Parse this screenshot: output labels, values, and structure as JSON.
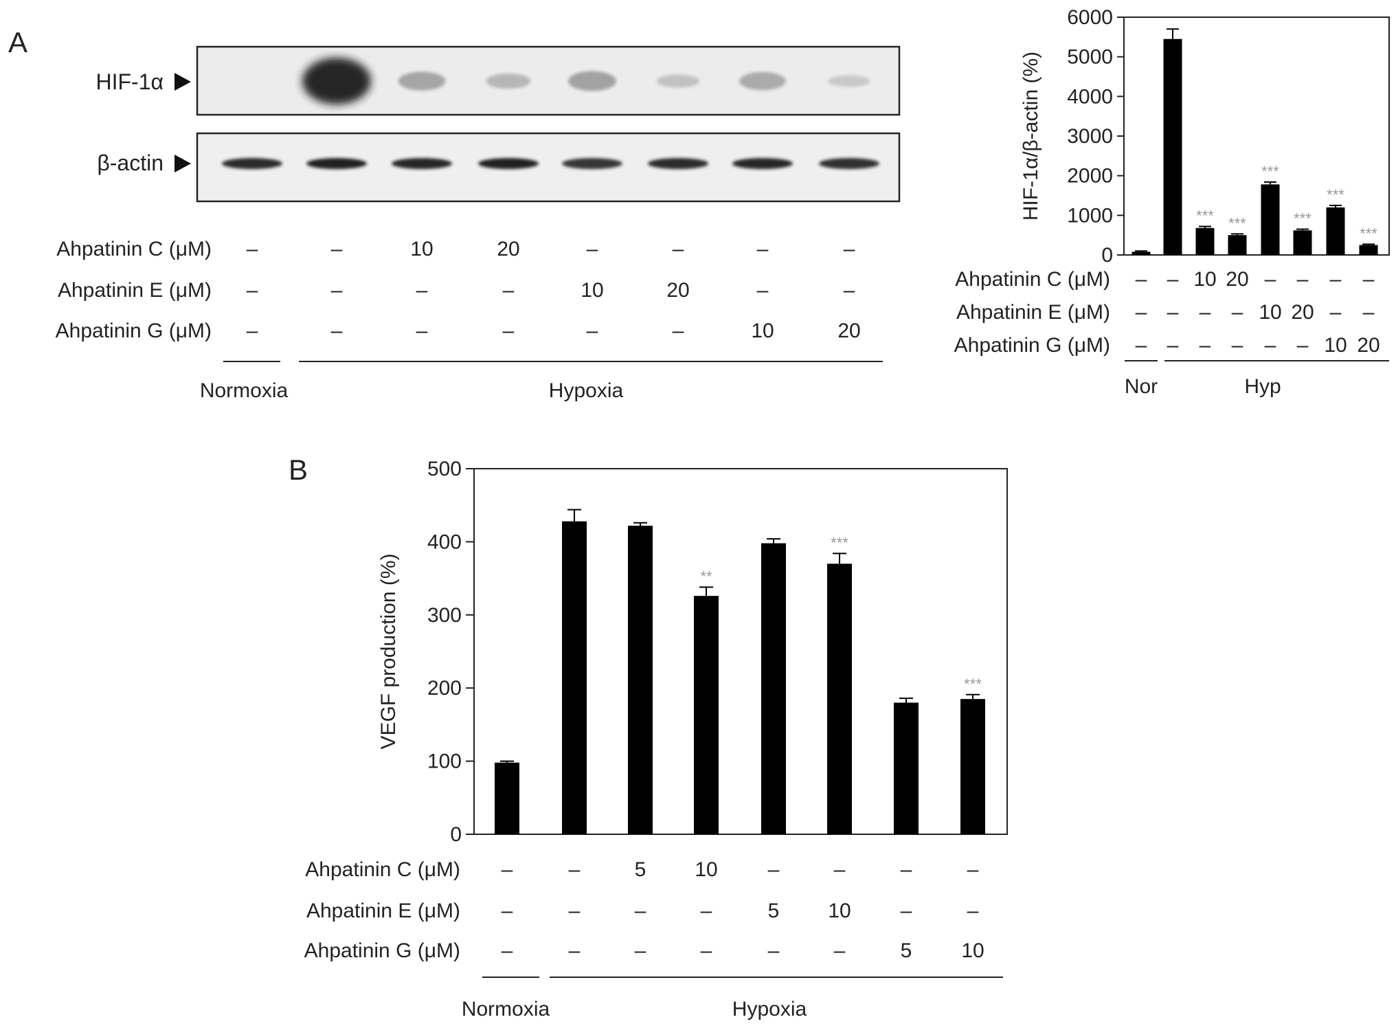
{
  "panel_labels": {
    "a": "A",
    "b": "B"
  },
  "blot": {
    "hif_label": "HIF-1α",
    "actin_label": "β-actin",
    "hif_intensities": [
      0,
      1.0,
      0.22,
      0.12,
      0.25,
      0.06,
      0.2,
      0.02
    ],
    "actin_intensities": [
      0.9,
      0.95,
      0.92,
      0.95,
      0.85,
      0.9,
      0.92,
      0.88
    ]
  },
  "blot_treatments": {
    "c_label": "Ahpatinin C (μM)",
    "e_label": "Ahpatinin E (μM)",
    "g_label": "Ahpatinin G (μM)",
    "c": [
      "–",
      "–",
      "10",
      "20",
      "–",
      "–",
      "–",
      "–"
    ],
    "e": [
      "–",
      "–",
      "–",
      "–",
      "10",
      "20",
      "–",
      "–"
    ],
    "g": [
      "–",
      "–",
      "–",
      "–",
      "–",
      "–",
      "10",
      "20"
    ],
    "normoxia": "Normoxia",
    "hypoxia": "Hypoxia"
  },
  "chart_data": [
    {
      "id": "A",
      "type": "bar",
      "ylabel": "HIF-1α/β-actin (%)",
      "ylim": [
        0,
        6000
      ],
      "yticks": [
        "0",
        "1000",
        "2000",
        "3000",
        "4000",
        "5000",
        "6000"
      ],
      "values": [
        80,
        5450,
        680,
        500,
        1780,
        620,
        1200,
        250
      ],
      "errors": [
        20,
        250,
        40,
        30,
        60,
        30,
        50,
        20
      ],
      "significance": [
        "",
        "",
        "***",
        "***",
        "***",
        "***",
        "***",
        "***"
      ],
      "treatments": {
        "c_label": "Ahpatinin C (μM)",
        "e_label": "Ahpatinin E (μM)",
        "g_label": "Ahpatinin G (μM)",
        "c": [
          "–",
          "–",
          "10",
          "20",
          "–",
          "–",
          "–",
          "–"
        ],
        "e": [
          "–",
          "–",
          "–",
          "–",
          "10",
          "20",
          "–",
          "–"
        ],
        "g": [
          "–",
          "–",
          "–",
          "–",
          "–",
          "–",
          "10",
          "20"
        ]
      },
      "groups": {
        "normoxia": "Nor",
        "hypoxia": "Hyp"
      },
      "bar_color": "#000000"
    },
    {
      "id": "B",
      "type": "bar",
      "ylabel": "VEGF production (%)",
      "ylim": [
        0,
        500
      ],
      "yticks": [
        "0",
        "100",
        "200",
        "300",
        "400",
        "500"
      ],
      "values": [
        98,
        428,
        422,
        326,
        398,
        370,
        180,
        185
      ],
      "errors": [
        2,
        16,
        4,
        12,
        6,
        14,
        6,
        6
      ],
      "significance": [
        "",
        "",
        "",
        "**",
        "",
        "***",
        "",
        "***"
      ],
      "treatments": {
        "c_label": "Ahpatinin C (μM)",
        "e_label": "Ahpatinin E (μM)",
        "g_label": "Ahpatinin G (μM)",
        "c": [
          "–",
          "–",
          "5",
          "10",
          "–",
          "–",
          "–",
          "–"
        ],
        "e": [
          "–",
          "–",
          "–",
          "–",
          "5",
          "10",
          "–",
          "–"
        ],
        "g": [
          "–",
          "–",
          "–",
          "–",
          "–",
          "–",
          "5",
          "10"
        ]
      },
      "groups": {
        "normoxia": "Normoxia",
        "hypoxia": "Hypoxia"
      },
      "bar_color": "#000000"
    }
  ]
}
